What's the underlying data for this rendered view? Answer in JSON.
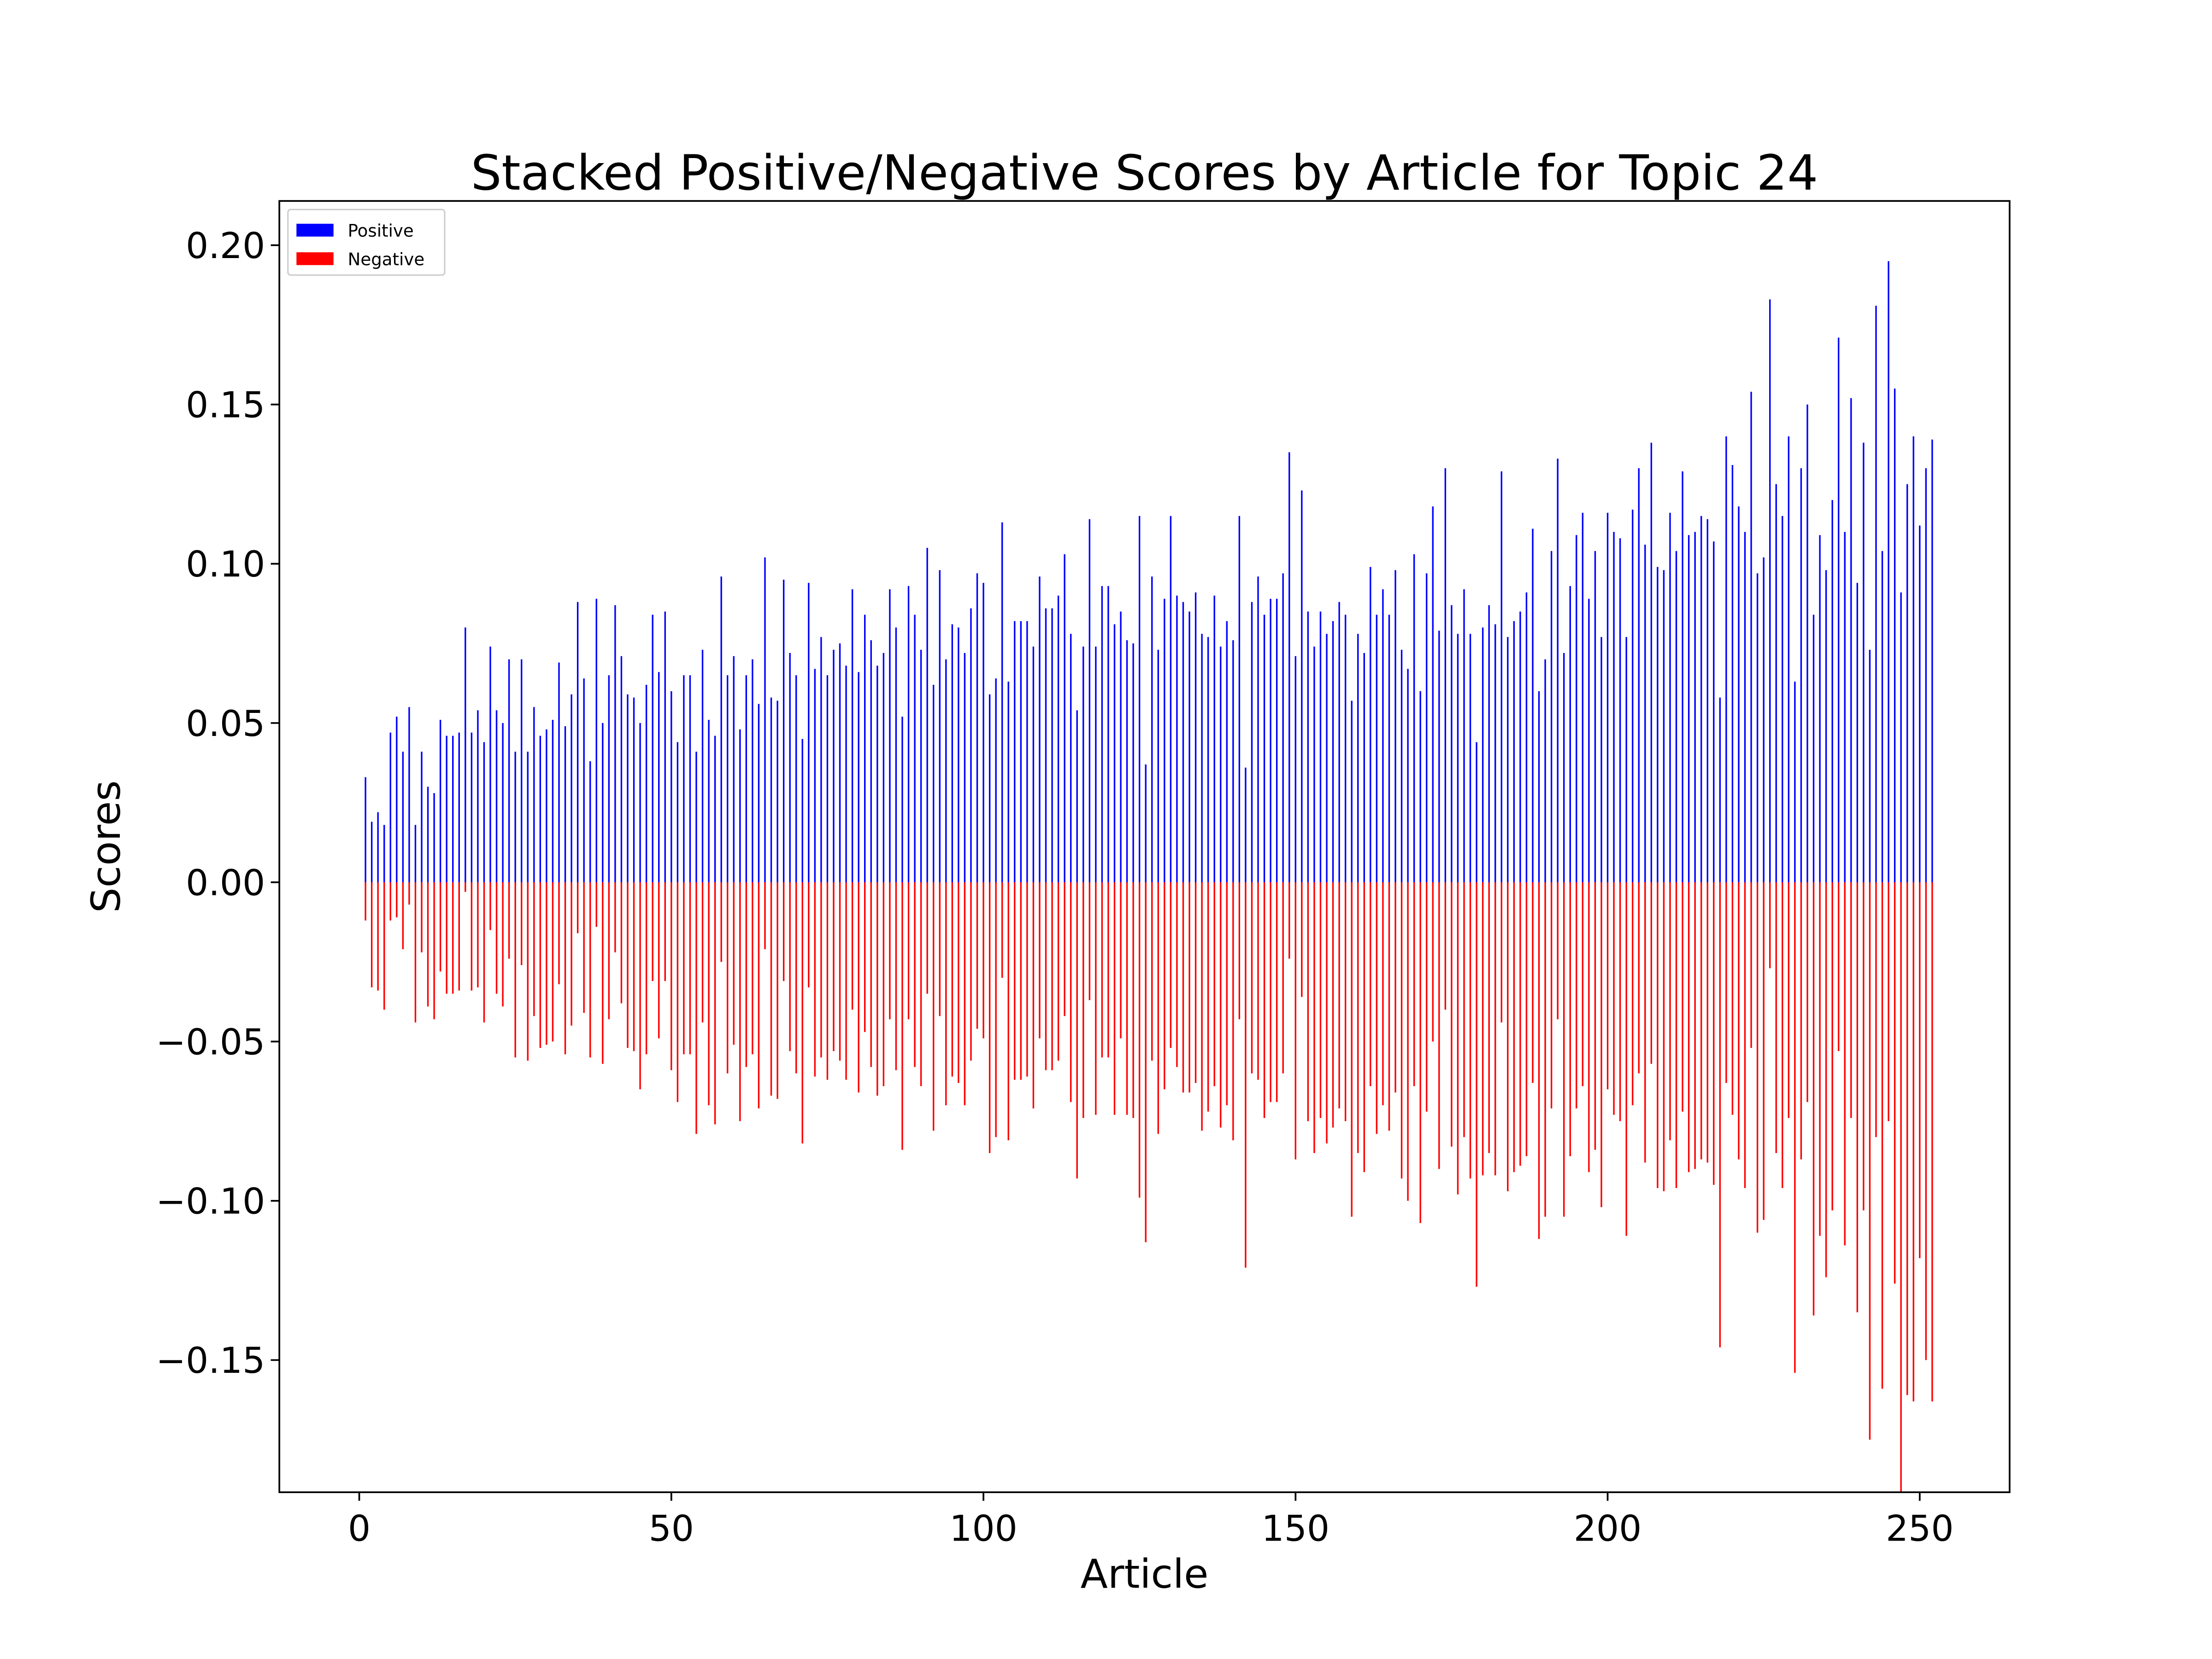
{
  "chart_data": {
    "type": "bar",
    "title": "Stacked Positive/Negative Scores by Article for Topic 24",
    "xlabel": "Article",
    "ylabel": "Scores",
    "x": [
      1,
      2,
      3,
      4,
      5,
      6,
      7,
      8,
      9,
      10,
      11,
      12,
      13,
      14,
      15,
      16,
      17,
      18,
      19,
      20,
      21,
      22,
      23,
      24,
      25,
      26,
      27,
      28,
      29,
      30,
      31,
      32,
      33,
      34,
      35,
      36,
      37,
      38,
      39,
      40,
      41,
      42,
      43,
      44,
      45,
      46,
      47,
      48,
      49,
      50,
      51,
      52,
      53,
      54,
      55,
      56,
      57,
      58,
      59,
      60,
      61,
      62,
      63,
      64,
      65,
      66,
      67,
      68,
      69,
      70,
      71,
      72,
      73,
      74,
      75,
      76,
      77,
      78,
      79,
      80,
      81,
      82,
      83,
      84,
      85,
      86,
      87,
      88,
      89,
      90,
      91,
      92,
      93,
      94,
      95,
      96,
      97,
      98,
      99,
      100,
      101,
      102,
      103,
      104,
      105,
      106,
      107,
      108,
      109,
      110,
      111,
      112,
      113,
      114,
      115,
      116,
      117,
      118,
      119,
      120,
      121,
      122,
      123,
      124,
      125,
      126,
      127,
      128,
      129,
      130,
      131,
      132,
      133,
      134,
      135,
      136,
      137,
      138,
      139,
      140,
      141,
      142,
      143,
      144,
      145,
      146,
      147,
      148,
      149,
      150,
      151,
      152,
      153,
      154,
      155,
      156,
      157,
      158,
      159,
      160,
      161,
      162,
      163,
      164,
      165,
      166,
      167,
      168,
      169,
      170,
      171,
      172,
      173,
      174,
      175,
      176,
      177,
      178,
      179,
      180,
      181,
      182,
      183,
      184,
      185,
      186,
      187,
      188,
      189,
      190,
      191,
      192,
      193,
      194,
      195,
      196,
      197,
      198,
      199,
      200,
      201,
      202,
      203,
      204,
      205,
      206,
      207,
      208,
      209,
      210,
      211,
      212,
      213,
      214,
      215,
      216,
      217,
      218,
      219,
      220,
      221,
      222,
      223,
      224,
      225,
      226,
      227,
      228,
      229,
      230,
      231,
      232,
      233,
      234,
      235,
      236,
      237,
      238,
      239,
      240,
      241,
      242,
      243,
      244,
      245,
      246,
      247,
      248,
      249,
      250,
      251,
      252
    ],
    "series": [
      {
        "name": "Positive",
        "color": "#0000ff",
        "values": [
          0.033,
          0.019,
          0.022,
          0.018,
          0.047,
          0.052,
          0.041,
          0.055,
          0.018,
          0.041,
          0.03,
          0.028,
          0.051,
          0.046,
          0.046,
          0.047,
          0.08,
          0.047,
          0.054,
          0.044,
          0.074,
          0.054,
          0.05,
          0.07,
          0.041,
          0.07,
          0.041,
          0.055,
          0.046,
          0.048,
          0.051,
          0.069,
          0.049,
          0.059,
          0.088,
          0.064,
          0.038,
          0.089,
          0.05,
          0.065,
          0.087,
          0.071,
          0.059,
          0.058,
          0.05,
          0.062,
          0.084,
          0.066,
          0.085,
          0.06,
          0.044,
          0.065,
          0.065,
          0.041,
          0.073,
          0.051,
          0.046,
          0.096,
          0.065,
          0.071,
          0.048,
          0.065,
          0.07,
          0.056,
          0.102,
          0.058,
          0.057,
          0.095,
          0.072,
          0.065,
          0.045,
          0.094,
          0.067,
          0.077,
          0.065,
          0.073,
          0.075,
          0.068,
          0.092,
          0.066,
          0.084,
          0.076,
          0.068,
          0.072,
          0.092,
          0.08,
          0.052,
          0.093,
          0.084,
          0.073,
          0.105,
          0.062,
          0.098,
          0.07,
          0.081,
          0.08,
          0.072,
          0.086,
          0.097,
          0.094,
          0.059,
          0.064,
          0.113,
          0.063,
          0.082,
          0.082,
          0.082,
          0.074,
          0.096,
          0.086,
          0.086,
          0.09,
          0.103,
          0.078,
          0.054,
          0.074,
          0.114,
          0.074,
          0.093,
          0.093,
          0.081,
          0.085,
          0.076,
          0.075,
          0.115,
          0.037,
          0.096,
          0.073,
          0.089,
          0.115,
          0.09,
          0.088,
          0.085,
          0.091,
          0.078,
          0.077,
          0.09,
          0.074,
          0.082,
          0.076,
          0.115,
          0.036,
          0.088,
          0.096,
          0.084,
          0.089,
          0.089,
          0.097,
          0.135,
          0.071,
          0.123,
          0.085,
          0.074,
          0.085,
          0.078,
          0.082,
          0.088,
          0.084,
          0.057,
          0.078,
          0.072,
          0.099,
          0.084,
          0.092,
          0.084,
          0.098,
          0.073,
          0.067,
          0.103,
          0.06,
          0.097,
          0.118,
          0.079,
          0.13,
          0.087,
          0.078,
          0.092,
          0.078,
          0.044,
          0.08,
          0.087,
          0.081,
          0.129,
          0.077,
          0.082,
          0.085,
          0.091,
          0.111,
          0.06,
          0.07,
          0.104,
          0.133,
          0.072,
          0.093,
          0.109,
          0.116,
          0.089,
          0.104,
          0.077,
          0.116,
          0.11,
          0.108,
          0.077,
          0.117,
          0.13,
          0.106,
          0.138,
          0.099,
          0.098,
          0.116,
          0.104,
          0.129,
          0.109,
          0.11,
          0.115,
          0.114,
          0.107,
          0.058,
          0.14,
          0.131,
          0.118,
          0.11,
          0.154,
          0.097,
          0.102,
          0.183,
          0.125,
          0.115,
          0.14,
          0.063,
          0.13,
          0.15,
          0.084,
          0.109,
          0.098,
          0.12,
          0.171,
          0.11,
          0.152,
          0.094,
          0.138,
          0.073,
          0.181,
          0.104,
          0.195,
          0.155,
          0.091,
          0.125,
          0.14,
          0.112,
          0.13,
          0.139
        ]
      },
      {
        "name": "Negative",
        "color": "#ff0000",
        "values": [
          -0.012,
          -0.033,
          -0.034,
          -0.04,
          -0.012,
          -0.011,
          -0.021,
          -0.007,
          -0.044,
          -0.022,
          -0.039,
          -0.043,
          -0.028,
          -0.035,
          -0.035,
          -0.034,
          -0.003,
          -0.034,
          -0.033,
          -0.044,
          -0.015,
          -0.035,
          -0.039,
          -0.024,
          -0.055,
          -0.026,
          -0.056,
          -0.042,
          -0.052,
          -0.051,
          -0.05,
          -0.032,
          -0.054,
          -0.045,
          -0.016,
          -0.041,
          -0.055,
          -0.014,
          -0.057,
          -0.043,
          -0.022,
          -0.038,
          -0.052,
          -0.053,
          -0.065,
          -0.054,
          -0.031,
          -0.049,
          -0.031,
          -0.059,
          -0.069,
          -0.054,
          -0.054,
          -0.079,
          -0.044,
          -0.07,
          -0.076,
          -0.025,
          -0.06,
          -0.051,
          -0.075,
          -0.058,
          -0.054,
          -0.071,
          -0.021,
          -0.067,
          -0.068,
          -0.031,
          -0.053,
          -0.06,
          -0.082,
          -0.033,
          -0.061,
          -0.055,
          -0.062,
          -0.053,
          -0.056,
          -0.062,
          -0.04,
          -0.066,
          -0.047,
          -0.058,
          -0.067,
          -0.064,
          -0.043,
          -0.059,
          -0.084,
          -0.043,
          -0.058,
          -0.064,
          -0.035,
          -0.078,
          -0.042,
          -0.07,
          -0.061,
          -0.063,
          -0.07,
          -0.056,
          -0.046,
          -0.049,
          -0.085,
          -0.08,
          -0.03,
          -0.081,
          -0.062,
          -0.062,
          -0.061,
          -0.071,
          -0.049,
          -0.059,
          -0.059,
          -0.056,
          -0.042,
          -0.069,
          -0.093,
          -0.074,
          -0.037,
          -0.073,
          -0.055,
          -0.055,
          -0.073,
          -0.049,
          -0.073,
          -0.074,
          -0.099,
          -0.113,
          -0.056,
          -0.079,
          -0.065,
          -0.052,
          -0.058,
          -0.066,
          -0.066,
          -0.063,
          -0.078,
          -0.072,
          -0.064,
          -0.077,
          -0.07,
          -0.081,
          -0.043,
          -0.121,
          -0.06,
          -0.062,
          -0.074,
          -0.069,
          -0.069,
          -0.06,
          -0.024,
          -0.087,
          -0.036,
          -0.075,
          -0.085,
          -0.074,
          -0.082,
          -0.077,
          -0.071,
          -0.075,
          -0.105,
          -0.085,
          -0.091,
          -0.064,
          -0.079,
          -0.07,
          -0.078,
          -0.066,
          -0.093,
          -0.1,
          -0.064,
          -0.107,
          -0.072,
          -0.05,
          -0.09,
          -0.04,
          -0.083,
          -0.098,
          -0.08,
          -0.093,
          -0.127,
          -0.092,
          -0.085,
          -0.092,
          -0.044,
          -0.097,
          -0.091,
          -0.089,
          -0.086,
          -0.063,
          -0.112,
          -0.105,
          -0.071,
          -0.043,
          -0.105,
          -0.086,
          -0.071,
          -0.064,
          -0.091,
          -0.084,
          -0.102,
          -0.065,
          -0.073,
          -0.075,
          -0.111,
          -0.07,
          -0.06,
          -0.088,
          -0.057,
          -0.096,
          -0.097,
          -0.081,
          -0.096,
          -0.072,
          -0.091,
          -0.09,
          -0.087,
          -0.088,
          -0.095,
          -0.146,
          -0.063,
          -0.073,
          -0.087,
          -0.096,
          -0.052,
          -0.11,
          -0.106,
          -0.027,
          -0.085,
          -0.096,
          -0.074,
          -0.154,
          -0.087,
          -0.069,
          -0.136,
          -0.111,
          -0.124,
          -0.103,
          -0.053,
          -0.114,
          -0.074,
          -0.135,
          -0.103,
          -0.175,
          -0.08,
          -0.159,
          -0.075,
          -0.126,
          -0.192,
          -0.161,
          -0.163,
          -0.118,
          -0.15,
          -0.163
        ]
      }
    ],
    "xlim": [
      -12.8,
      264.4
    ],
    "ylim": [
      -0.1915,
      0.2139
    ],
    "xticks": [
      0,
      50,
      100,
      150,
      200,
      250
    ],
    "yticks": [
      {
        "value": -0.15,
        "label": "−0.15"
      },
      {
        "value": -0.1,
        "label": "−0.10"
      },
      {
        "value": -0.05,
        "label": "−0.05"
      },
      {
        "value": 0,
        "label": "0.00"
      },
      {
        "value": 0.05,
        "label": "0.05"
      },
      {
        "value": 0.1,
        "label": "0.10"
      },
      {
        "value": 0.15,
        "label": "0.15"
      },
      {
        "value": 0.2,
        "label": "0.20"
      }
    ],
    "grid": false,
    "legend": "upper left"
  }
}
